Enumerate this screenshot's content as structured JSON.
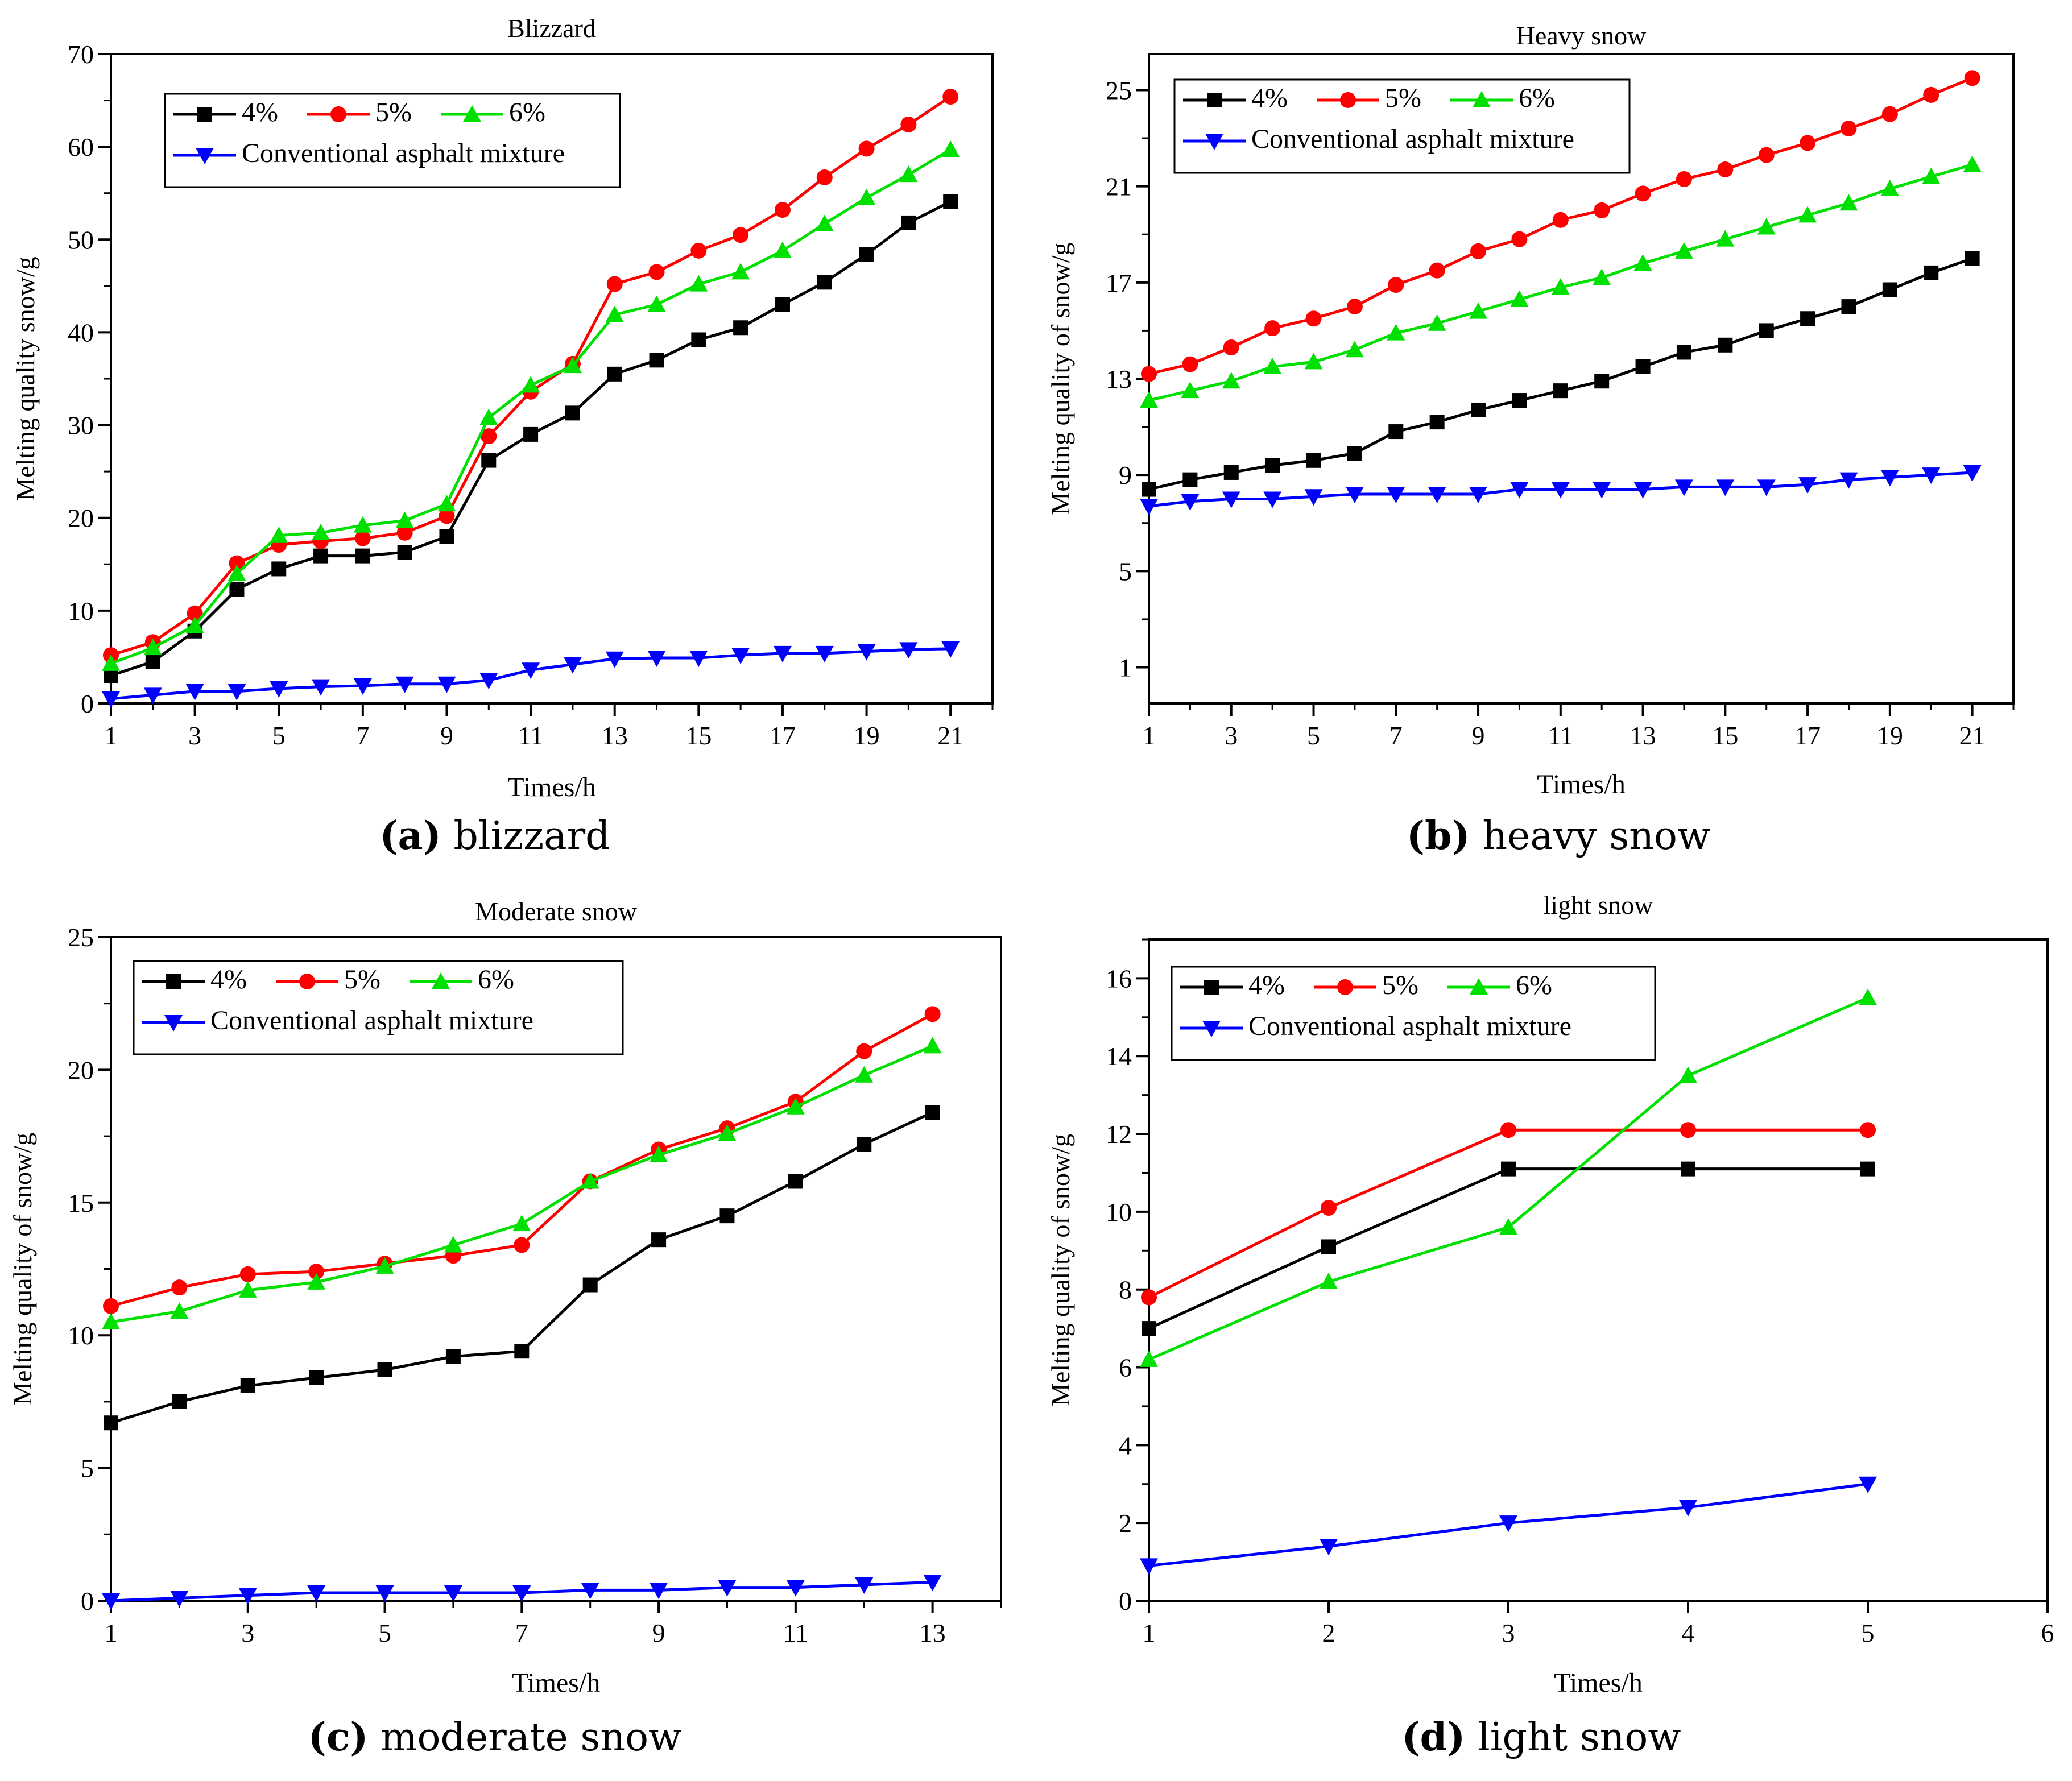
{
  "colors": {
    "s4": "#000000",
    "s5": "#ff0000",
    "s6": "#00e000",
    "conv": "#0000ff"
  },
  "chart_data": [
    {
      "type": "line",
      "id": "a",
      "title": "Blizzard",
      "xlabel": "Times/h",
      "ylabel": "Melting quality snow/g",
      "xlim": [
        1,
        22.0
      ],
      "ylim": [
        0,
        70
      ],
      "xticks": [
        1,
        3,
        5,
        7,
        9,
        11,
        13,
        15,
        17,
        19,
        21
      ],
      "yticks": [
        0,
        10,
        20,
        30,
        40,
        50,
        60,
        70
      ],
      "legend": "top-left",
      "caption_label": "(a)",
      "caption_text": "blizzard",
      "x": [
        1,
        2,
        3,
        4,
        5,
        6,
        7,
        8,
        9,
        10,
        11,
        12,
        13,
        14,
        15,
        16,
        17,
        18,
        19,
        20,
        21
      ],
      "series": [
        {
          "name": "4%",
          "color_key": "s4",
          "marker": "square",
          "values": [
            3.0,
            4.5,
            7.8,
            12.3,
            14.5,
            15.9,
            15.9,
            16.3,
            18.0,
            26.2,
            29.0,
            31.3,
            35.5,
            37.0,
            39.2,
            40.5,
            43.0,
            45.4,
            48.4,
            51.8,
            54.1
          ]
        },
        {
          "name": "5%",
          "color_key": "s5",
          "marker": "circle",
          "values": [
            5.2,
            6.6,
            9.7,
            15.1,
            17.1,
            17.5,
            17.8,
            18.4,
            20.2,
            28.8,
            33.6,
            36.6,
            45.2,
            46.5,
            48.8,
            50.5,
            53.2,
            56.7,
            59.8,
            62.4,
            65.4
          ]
        },
        {
          "name": "6%",
          "color_key": "s6",
          "marker": "triangle-up",
          "values": [
            4.3,
            6.0,
            8.4,
            14.0,
            18.1,
            18.4,
            19.2,
            19.7,
            21.5,
            30.8,
            34.3,
            36.4,
            41.9,
            43.0,
            45.2,
            46.5,
            48.8,
            51.7,
            54.5,
            57.0,
            59.7
          ]
        },
        {
          "name": "Conventional asphalt mixture",
          "color_key": "conv",
          "marker": "triangle-down",
          "values": [
            0.5,
            0.9,
            1.3,
            1.3,
            1.6,
            1.8,
            1.9,
            2.1,
            2.1,
            2.5,
            3.6,
            4.2,
            4.8,
            4.9,
            4.9,
            5.2,
            5.4,
            5.4,
            5.6,
            5.8,
            5.9
          ]
        }
      ]
    },
    {
      "type": "line",
      "id": "b",
      "title": "Heavy snow",
      "xlabel": "Times/h",
      "ylabel": "Melting quality of snow/g",
      "xlim": [
        1,
        22.0
      ],
      "ylim": [
        -0.5,
        26.5
      ],
      "xticks": [
        1,
        3,
        5,
        7,
        9,
        11,
        13,
        15,
        17,
        19,
        21
      ],
      "yticks": [
        1,
        5,
        9,
        13,
        17,
        21,
        25
      ],
      "legend": "top-left",
      "caption_label": "(b)",
      "caption_text": "heavy snow",
      "x": [
        1,
        2,
        3,
        4,
        5,
        6,
        7,
        8,
        9,
        10,
        11,
        12,
        13,
        14,
        15,
        16,
        17,
        18,
        19,
        20,
        21
      ],
      "series": [
        {
          "name": "4%",
          "color_key": "s4",
          "marker": "square",
          "values": [
            8.4,
            8.8,
            9.1,
            9.4,
            9.6,
            9.9,
            10.8,
            11.2,
            11.7,
            12.1,
            12.5,
            12.9,
            13.5,
            14.1,
            14.4,
            15.0,
            15.5,
            16.0,
            16.7,
            17.4,
            18.0
          ]
        },
        {
          "name": "5%",
          "color_key": "s5",
          "marker": "circle",
          "values": [
            13.2,
            13.6,
            14.3,
            15.1,
            15.5,
            16.0,
            16.9,
            17.5,
            18.3,
            18.8,
            19.6,
            20.0,
            20.7,
            21.3,
            21.7,
            22.3,
            22.8,
            23.4,
            24.0,
            24.8,
            25.5
          ]
        },
        {
          "name": "6%",
          "color_key": "s6",
          "marker": "triangle-up",
          "values": [
            12.1,
            12.5,
            12.9,
            13.5,
            13.7,
            14.2,
            14.9,
            15.3,
            15.8,
            16.3,
            16.8,
            17.2,
            17.8,
            18.3,
            18.8,
            19.3,
            19.8,
            20.3,
            20.9,
            21.4,
            21.9
          ]
        },
        {
          "name": "Conventional asphalt mixture",
          "color_key": "conv",
          "marker": "triangle-down",
          "values": [
            7.7,
            7.9,
            8.0,
            8.0,
            8.1,
            8.2,
            8.2,
            8.2,
            8.2,
            8.4,
            8.4,
            8.4,
            8.4,
            8.5,
            8.5,
            8.5,
            8.6,
            8.8,
            8.9,
            9.0,
            9.1
          ]
        }
      ]
    },
    {
      "type": "line",
      "id": "c",
      "title": "Moderate snow",
      "xlabel": "Times/h",
      "ylabel": "Melting quality of snow/g",
      "xlim": [
        1,
        14.0
      ],
      "ylim": [
        0,
        25
      ],
      "xticks": [
        1,
        3,
        5,
        7,
        9,
        11,
        13
      ],
      "yticks": [
        0,
        5,
        10,
        15,
        20,
        25
      ],
      "legend": "top-left",
      "caption_label": "(c)",
      "caption_text": "moderate snow",
      "x": [
        1,
        2,
        3,
        4,
        5,
        6,
        7,
        8,
        9,
        10,
        11,
        12,
        13
      ],
      "series": [
        {
          "name": "4%",
          "color_key": "s4",
          "marker": "square",
          "values": [
            6.7,
            7.5,
            8.1,
            8.4,
            8.7,
            9.2,
            9.4,
            11.9,
            13.6,
            14.5,
            15.8,
            17.2,
            18.4
          ]
        },
        {
          "name": "5%",
          "color_key": "s5",
          "marker": "circle",
          "values": [
            11.1,
            11.8,
            12.3,
            12.4,
            12.7,
            13.0,
            13.4,
            15.8,
            17.0,
            17.8,
            18.8,
            20.7,
            22.1
          ]
        },
        {
          "name": "6%",
          "color_key": "s6",
          "marker": "triangle-up",
          "values": [
            10.5,
            10.9,
            11.7,
            12.0,
            12.6,
            13.4,
            14.2,
            15.8,
            16.8,
            17.6,
            18.6,
            19.8,
            20.9
          ]
        },
        {
          "name": "Conventional asphalt mixture",
          "color_key": "conv",
          "marker": "triangle-down",
          "values": [
            0.0,
            0.1,
            0.2,
            0.3,
            0.3,
            0.3,
            0.3,
            0.4,
            0.4,
            0.5,
            0.5,
            0.6,
            0.7
          ]
        }
      ]
    },
    {
      "type": "line",
      "id": "d",
      "title": "light snow",
      "xlabel": "Times/h",
      "ylabel": "Melting quality of snow/g",
      "xlim": [
        1,
        6
      ],
      "ylim": [
        0,
        17
      ],
      "xticks": [
        1,
        2,
        3,
        4,
        5,
        6
      ],
      "yticks": [
        0,
        2,
        4,
        6,
        8,
        10,
        12,
        14,
        16
      ],
      "legend": "top-left",
      "caption_label": "(d)",
      "caption_text": "light snow",
      "x": [
        1,
        2,
        3,
        4,
        5
      ],
      "series": [
        {
          "name": "4%",
          "color_key": "s4",
          "marker": "square",
          "values": [
            7.0,
            9.1,
            11.1,
            11.1,
            11.1
          ]
        },
        {
          "name": "5%",
          "color_key": "s5",
          "marker": "circle",
          "values": [
            7.8,
            10.1,
            12.1,
            12.1,
            12.1
          ]
        },
        {
          "name": "6%",
          "color_key": "s6",
          "marker": "triangle-up",
          "values": [
            6.2,
            8.2,
            9.6,
            13.5,
            15.5
          ]
        },
        {
          "name": "Conventional asphalt mixture",
          "color_key": "conv",
          "marker": "triangle-down",
          "values": [
            0.9,
            1.4,
            2.0,
            2.4,
            3.0
          ]
        }
      ]
    }
  ]
}
